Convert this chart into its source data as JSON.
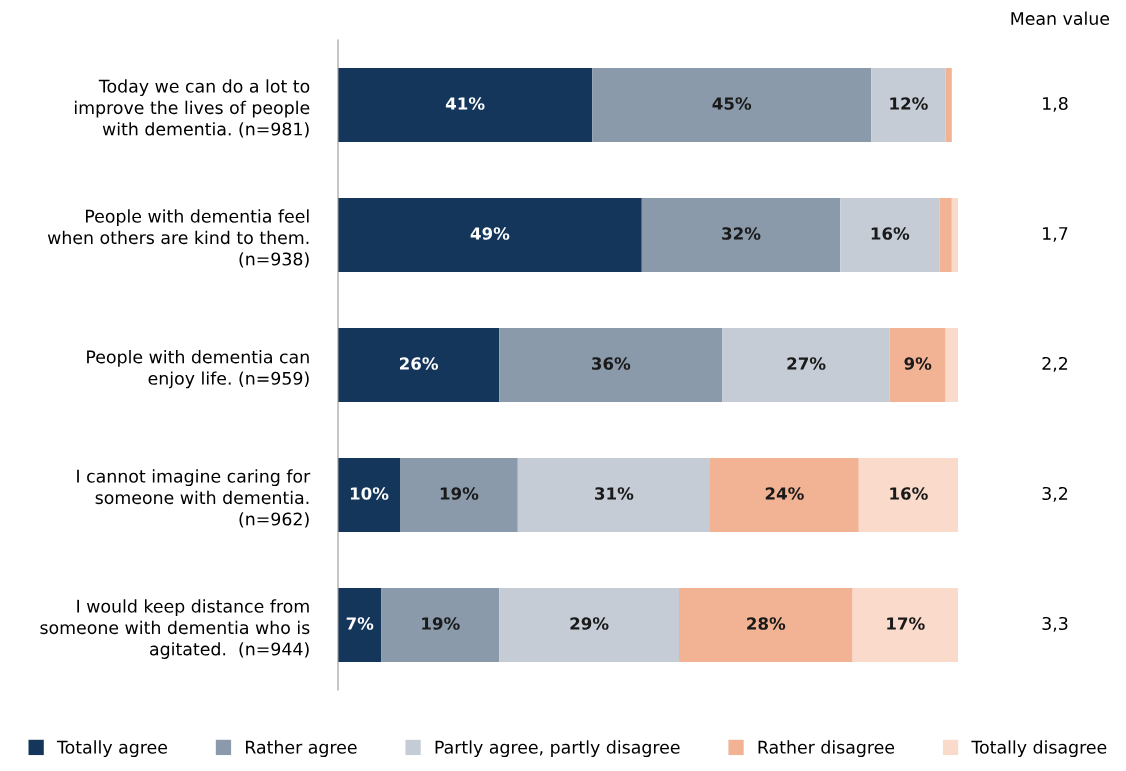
{
  "chart_data": {
    "type": "bar",
    "orientation": "horizontal",
    "stacked": true,
    "categories": [
      "Today we can do a lot to\nimprove the lives of people\nwith dementia. (n=981)",
      "People with dementia feel\nwhen others are kind to them.\n(n=938)",
      "People with dementia can\nenjoy life. (n=959)",
      "I cannot imagine caring for\nsomeone with dementia.\n(n=962)",
      "I would keep distance from\nsomeone with dementia who is\nagitated.  (n=944)"
    ],
    "series": [
      {
        "name": "Totally agree",
        "color": "#14365a",
        "values": [
          41,
          49,
          26,
          10,
          7
        ],
        "value_labels": [
          "41%",
          "49%",
          "26%",
          "10%",
          "7%"
        ]
      },
      {
        "name": "Rather agree",
        "color": "#8a9aab",
        "values": [
          45,
          32,
          36,
          19,
          19
        ],
        "value_labels": [
          "45%",
          "32%",
          "36%",
          "19%",
          "19%"
        ]
      },
      {
        "name": "Partly agree, partly disagree",
        "color": "#c5ccd6",
        "values": [
          12,
          16,
          27,
          31,
          29
        ],
        "value_labels": [
          "12%",
          "16%",
          "27%",
          "31%",
          "29%"
        ]
      },
      {
        "name": "Rather disagree",
        "color": "#f2b395",
        "values": [
          1,
          2,
          9,
          24,
          28
        ],
        "value_labels": [
          null,
          null,
          "9%",
          "24%",
          "28%"
        ]
      },
      {
        "name": "Totally disagree",
        "color": "#f9dacb",
        "values": [
          null,
          1,
          2,
          16,
          17
        ],
        "value_labels": [
          null,
          null,
          null,
          "16%",
          "17%"
        ]
      }
    ],
    "xlim": [
      0,
      100
    ],
    "tick_labels": "y",
    "grid": false,
    "legend": "bottom",
    "annotations": [
      "Mean value",
      "1,8",
      "1,7",
      "2,2",
      "3,2",
      "3,3"
    ]
  }
}
